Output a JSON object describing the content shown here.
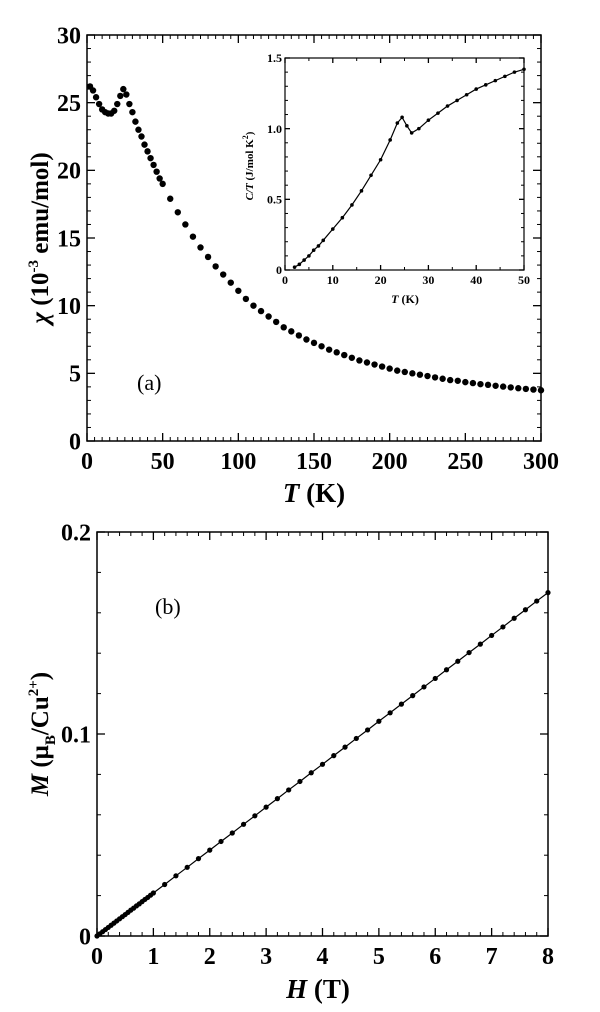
{
  "chart_data": [
    {
      "id": "a",
      "type": "scatter",
      "panel_label": "(a)",
      "xlabel_italic": "T",
      "xlabel_unit": "(K)",
      "ylabel_symbol": "χ",
      "ylabel_prefix": "(10",
      "ylabel_exp": "-3",
      "ylabel_unit": " emu/mol)",
      "xlim": [
        0,
        300
      ],
      "ylim": [
        0,
        30
      ],
      "xticks": [
        0,
        50,
        100,
        150,
        200,
        250,
        300
      ],
      "yticks": [
        0,
        5,
        10,
        15,
        20,
        25,
        30
      ],
      "series": [
        {
          "x": [
            2,
            4,
            6,
            8,
            10,
            12,
            14,
            16,
            18,
            20,
            22,
            24,
            26,
            28,
            30,
            32,
            34,
            36,
            38,
            40,
            42,
            44,
            46,
            48,
            50,
            55,
            60,
            65,
            70,
            75,
            80,
            85,
            90,
            95,
            100,
            105,
            110,
            115,
            120,
            125,
            130,
            135,
            140,
            145,
            150,
            155,
            160,
            165,
            170,
            175,
            180,
            185,
            190,
            195,
            200,
            205,
            210,
            215,
            220,
            225,
            230,
            235,
            240,
            245,
            250,
            255,
            260,
            265,
            270,
            275,
            280,
            285,
            290,
            295,
            300
          ],
          "y": [
            26.2,
            25.9,
            25.4,
            24.9,
            24.5,
            24.3,
            24.2,
            24.2,
            24.4,
            24.9,
            25.5,
            26.0,
            25.6,
            24.9,
            24.3,
            23.6,
            23.0,
            22.5,
            21.9,
            21.4,
            20.9,
            20.4,
            19.9,
            19.4,
            19.0,
            17.9,
            16.9,
            16.0,
            15.1,
            14.3,
            13.6,
            12.9,
            12.3,
            11.7,
            11.1,
            10.5,
            10.0,
            9.6,
            9.2,
            8.8,
            8.4,
            8.1,
            7.8,
            7.5,
            7.25,
            7.0,
            6.75,
            6.55,
            6.35,
            6.15,
            5.95,
            5.8,
            5.65,
            5.5,
            5.35,
            5.2,
            5.1,
            5.0,
            4.9,
            4.8,
            4.7,
            4.6,
            4.5,
            4.45,
            4.35,
            4.28,
            4.2,
            4.15,
            4.08,
            4.02,
            3.96,
            3.9,
            3.85,
            3.8,
            3.75
          ]
        }
      ]
    },
    {
      "id": "inset",
      "type": "line",
      "xlabel_italic": "T",
      "xlabel_unit": "(K)",
      "ylabel_italic": "C/T",
      "ylabel_unit": "(J/mol K",
      "ylabel_exp": "2",
      "ylabel_close": ")",
      "xlim": [
        0,
        50
      ],
      "ylim": [
        0,
        1.5
      ],
      "xticks": [
        "0",
        "10",
        "20",
        "30",
        "40",
        "50"
      ],
      "yticks": [
        "0",
        "0.5",
        "1.0",
        "1.5"
      ],
      "series": [
        {
          "x": [
            2,
            3,
            4,
            5,
            6,
            7,
            8,
            10,
            12,
            14,
            16,
            18,
            20,
            22,
            23.5,
            24.5,
            25.5,
            26.5,
            28,
            30,
            32,
            34,
            36,
            38,
            40,
            42,
            44,
            46,
            48,
            50
          ],
          "y": [
            0.02,
            0.04,
            0.07,
            0.1,
            0.14,
            0.17,
            0.21,
            0.29,
            0.37,
            0.46,
            0.56,
            0.67,
            0.78,
            0.92,
            1.04,
            1.08,
            1.02,
            0.97,
            1.0,
            1.06,
            1.11,
            1.16,
            1.2,
            1.24,
            1.28,
            1.31,
            1.34,
            1.37,
            1.4,
            1.42
          ]
        }
      ]
    },
    {
      "id": "b",
      "type": "line",
      "panel_label": "(b)",
      "xlabel_italic": "H",
      "xlabel_unit": "(T)",
      "ylabel_italic": "M",
      "ylabel_open": " (μ",
      "ylabel_sub": "B",
      "ylabel_mid": "/Cu",
      "ylabel_sup": "2+",
      "ylabel_close": ")",
      "xlim": [
        0,
        8
      ],
      "ylim": [
        0,
        0.2
      ],
      "xticks": [
        0,
        1,
        2,
        3,
        4,
        5,
        6,
        7,
        8
      ],
      "yticks": [
        "0",
        "0.1",
        "0.2"
      ],
      "series": [
        {
          "x": [
            0,
            0.05,
            0.1,
            0.15,
            0.2,
            0.25,
            0.3,
            0.35,
            0.4,
            0.45,
            0.5,
            0.55,
            0.6,
            0.65,
            0.7,
            0.75,
            0.8,
            0.85,
            0.9,
            0.95,
            1.0,
            1.2,
            1.4,
            1.6,
            1.8,
            2.0,
            2.2,
            2.4,
            2.6,
            2.8,
            3.0,
            3.2,
            3.4,
            3.6,
            3.8,
            4.0,
            4.2,
            4.4,
            4.6,
            4.8,
            5.0,
            5.2,
            5.4,
            5.6,
            5.8,
            6.0,
            6.2,
            6.4,
            6.6,
            6.8,
            7.0,
            7.2,
            7.4,
            7.6,
            7.8,
            8.0
          ],
          "y": [
            0.0,
            0.00106,
            0.00213,
            0.00319,
            0.00425,
            0.00531,
            0.00638,
            0.00744,
            0.0085,
            0.00956,
            0.0106,
            0.0117,
            0.0128,
            0.0138,
            0.0149,
            0.0159,
            0.017,
            0.0181,
            0.0191,
            0.0202,
            0.0213,
            0.0255,
            0.0298,
            0.034,
            0.0383,
            0.0425,
            0.0468,
            0.051,
            0.0553,
            0.0595,
            0.0638,
            0.068,
            0.0723,
            0.0765,
            0.0808,
            0.085,
            0.0893,
            0.0935,
            0.0978,
            0.102,
            0.1063,
            0.1105,
            0.1148,
            0.119,
            0.1233,
            0.1275,
            0.1318,
            0.136,
            0.1403,
            0.1445,
            0.1488,
            0.153,
            0.1573,
            0.1615,
            0.1658,
            0.17
          ]
        }
      ]
    }
  ]
}
